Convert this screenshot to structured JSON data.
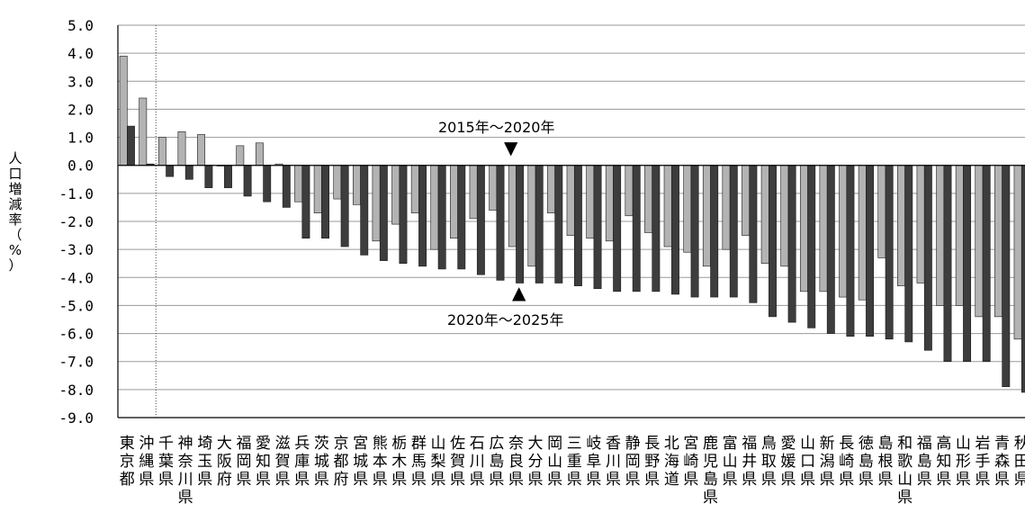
{
  "chart_data": {
    "type": "bar",
    "ylabel": "人口増減率（%）",
    "ylim": [
      -9.0,
      5.0
    ],
    "yticks": [
      "5.0",
      "4.0",
      "3.0",
      "2.0",
      "1.0",
      "0.0",
      "-1.0",
      "-2.0",
      "-3.0",
      "-4.0",
      "-5.0",
      "-6.0",
      "-7.0",
      "-8.0",
      "-9.0"
    ],
    "grid": true,
    "colors": {
      "series1": "#b3b3b3",
      "series2": "#3d3d3d"
    },
    "categories": [
      "東京都",
      "沖縄県",
      "千葉県",
      "神奈川県",
      "埼玉県",
      "大阪府",
      "福岡県",
      "愛知県",
      "滋賀県",
      "兵庫県",
      "茨城県",
      "京都府",
      "宮城県",
      "熊本県",
      "栃木県",
      "群馬県",
      "山梨県",
      "佐賀県",
      "石川県",
      "広島県",
      "奈良県",
      "大分県",
      "岡山県",
      "三重県",
      "岐阜県",
      "香川県",
      "静岡県",
      "長野県",
      "北海道",
      "宮崎県",
      "鹿児島県",
      "富山県",
      "福井県",
      "鳥取県",
      "愛媛県",
      "山口県",
      "新潟県",
      "長崎県",
      "徳島県",
      "島根県",
      "和歌山県",
      "福島県",
      "高知県",
      "山形県",
      "岩手県",
      "青森県",
      "秋田県"
    ],
    "series": [
      {
        "name": "2015年～2020年",
        "values": [
          3.9,
          2.4,
          1.0,
          1.2,
          1.1,
          0.0,
          0.7,
          0.8,
          0.05,
          -1.3,
          -1.7,
          -1.2,
          -1.4,
          -2.7,
          -2.1,
          -1.7,
          -3.0,
          -2.6,
          -1.9,
          -1.6,
          -2.9,
          -3.6,
          -1.7,
          -2.5,
          -2.6,
          -2.7,
          -1.8,
          -2.4,
          -2.9,
          -3.1,
          -3.6,
          -3.0,
          -2.5,
          -3.5,
          -3.6,
          -4.5,
          -4.5,
          -4.7,
          -4.8,
          -3.3,
          -4.3,
          -4.2,
          -5.0,
          -5.0,
          -5.4,
          -5.4,
          -6.2
        ]
      },
      {
        "name": "2020年～2025年",
        "values": [
          1.4,
          0.05,
          -0.4,
          -0.5,
          -0.8,
          -0.8,
          -1.1,
          -1.3,
          -1.5,
          -2.6,
          -2.6,
          -2.9,
          -3.2,
          -3.4,
          -3.5,
          -3.6,
          -3.7,
          -3.7,
          -3.9,
          -4.1,
          -4.2,
          -4.2,
          -4.2,
          -4.3,
          -4.4,
          -4.5,
          -4.5,
          -4.5,
          -4.6,
          -4.7,
          -4.7,
          -4.7,
          -4.9,
          -5.4,
          -5.6,
          -5.8,
          -6.0,
          -6.1,
          -6.1,
          -6.2,
          -6.3,
          -6.6,
          -7.0,
          -7.0,
          -7.0,
          -7.9,
          -8.1
        ]
      }
    ],
    "annotations": [
      {
        "text": "2015年～2020年",
        "marker": "▼"
      },
      {
        "text": "2020年～2025年",
        "marker": "▲"
      }
    ]
  }
}
